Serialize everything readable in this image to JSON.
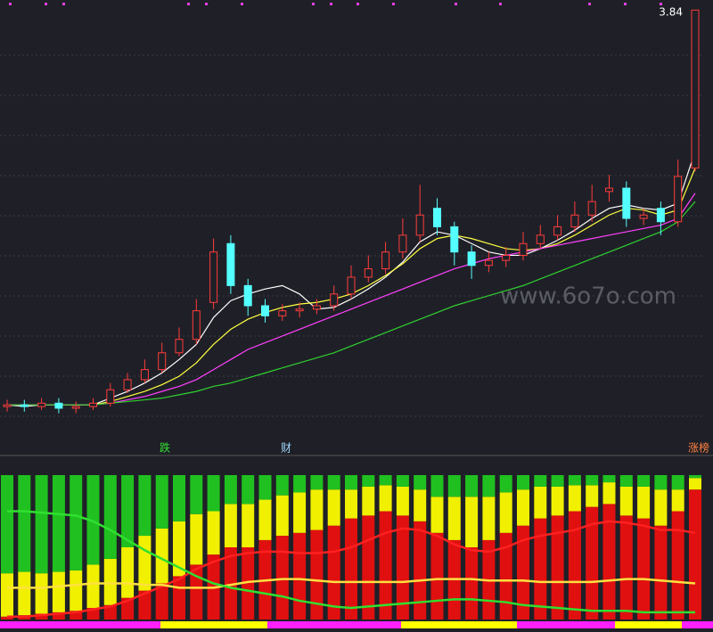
{
  "chart_data": [
    {
      "type": "candlestick",
      "ylim": [
        1.3,
        3.9
      ],
      "high_label": "3.84",
      "up_color": "#ff3b3b",
      "down_color": "#54ffff",
      "open": [
        1.48,
        1.49,
        1.48,
        1.5,
        1.47,
        1.48,
        1.5,
        1.58,
        1.64,
        1.7,
        1.8,
        1.88,
        2.1,
        2.45,
        2.2,
        2.08,
        2.02,
        2.05,
        2.06,
        2.08,
        2.15,
        2.25,
        2.3,
        2.4,
        2.5,
        2.66,
        2.55,
        2.4,
        2.32,
        2.35,
        2.38,
        2.45,
        2.5,
        2.55,
        2.62,
        2.76,
        2.78,
        2.6,
        2.66,
        2.58,
        2.9
      ],
      "high": [
        1.52,
        1.52,
        1.53,
        1.53,
        1.51,
        1.53,
        1.62,
        1.68,
        1.76,
        1.86,
        1.95,
        2.12,
        2.48,
        2.5,
        2.24,
        2.12,
        2.09,
        2.1,
        2.12,
        2.2,
        2.32,
        2.38,
        2.46,
        2.6,
        2.8,
        2.72,
        2.58,
        2.44,
        2.4,
        2.43,
        2.52,
        2.56,
        2.62,
        2.7,
        2.8,
        2.86,
        2.82,
        2.66,
        2.7,
        2.95,
        3.84
      ],
      "low": [
        1.45,
        1.45,
        1.46,
        1.44,
        1.44,
        1.46,
        1.48,
        1.56,
        1.62,
        1.68,
        1.78,
        1.85,
        2.06,
        2.15,
        2.02,
        1.98,
        1.99,
        2.01,
        2.03,
        2.05,
        2.12,
        2.22,
        2.27,
        2.36,
        2.46,
        2.5,
        2.32,
        2.24,
        2.28,
        2.31,
        2.35,
        2.42,
        2.47,
        2.52,
        2.58,
        2.7,
        2.55,
        2.56,
        2.5,
        2.55,
        2.88
      ],
      "close": [
        1.49,
        1.48,
        1.5,
        1.47,
        1.48,
        1.5,
        1.58,
        1.64,
        1.7,
        1.8,
        1.88,
        2.05,
        2.4,
        2.2,
        2.08,
        2.02,
        2.05,
        2.06,
        2.08,
        2.15,
        2.25,
        2.3,
        2.4,
        2.5,
        2.62,
        2.55,
        2.4,
        2.32,
        2.35,
        2.38,
        2.45,
        2.5,
        2.55,
        2.62,
        2.7,
        2.78,
        2.6,
        2.62,
        2.58,
        2.85,
        3.84
      ],
      "series": [
        {
          "color": "#ffffff",
          "values": [
            1.49,
            1.48,
            1.49,
            1.49,
            1.49,
            1.49,
            1.53,
            1.57,
            1.62,
            1.68,
            1.76,
            1.85,
            2.01,
            2.11,
            2.15,
            2.18,
            2.2,
            2.15,
            2.06,
            2.07,
            2.12,
            2.18,
            2.25,
            2.34,
            2.46,
            2.52,
            2.5,
            2.45,
            2.4,
            2.38,
            2.38,
            2.42,
            2.47,
            2.53,
            2.6,
            2.66,
            2.68,
            2.66,
            2.65,
            2.69,
            3.0
          ]
        },
        {
          "color": "#ffff40",
          "values": [
            1.49,
            1.49,
            1.49,
            1.49,
            1.49,
            1.49,
            1.51,
            1.54,
            1.57,
            1.61,
            1.66,
            1.74,
            1.85,
            1.94,
            2.0,
            2.04,
            2.07,
            2.09,
            2.1,
            2.12,
            2.15,
            2.2,
            2.26,
            2.33,
            2.42,
            2.48,
            2.5,
            2.48,
            2.45,
            2.42,
            2.41,
            2.42,
            2.45,
            2.5,
            2.56,
            2.62,
            2.66,
            2.65,
            2.62,
            2.65,
            2.9
          ]
        },
        {
          "color": "#ff40ff",
          "values": [
            1.49,
            1.49,
            1.49,
            1.49,
            1.49,
            1.49,
            1.5,
            1.52,
            1.54,
            1.57,
            1.6,
            1.64,
            1.7,
            1.76,
            1.82,
            1.86,
            1.9,
            1.94,
            1.98,
            2.02,
            2.06,
            2.1,
            2.14,
            2.18,
            2.22,
            2.26,
            2.3,
            2.33,
            2.36,
            2.38,
            2.4,
            2.42,
            2.44,
            2.46,
            2.48,
            2.5,
            2.52,
            2.54,
            2.56,
            2.6,
            2.75
          ]
        },
        {
          "color": "#30d030",
          "values": [
            1.49,
            1.49,
            1.49,
            1.49,
            1.49,
            1.49,
            1.5,
            1.51,
            1.52,
            1.53,
            1.55,
            1.57,
            1.6,
            1.62,
            1.65,
            1.68,
            1.71,
            1.74,
            1.77,
            1.8,
            1.84,
            1.88,
            1.92,
            1.96,
            2.0,
            2.04,
            2.08,
            2.11,
            2.14,
            2.17,
            2.2,
            2.24,
            2.28,
            2.32,
            2.36,
            2.4,
            2.44,
            2.48,
            2.52,
            2.58,
            2.7
          ]
        }
      ],
      "annotations": [
        {
          "text": "跌",
          "color": "#30e030"
        },
        {
          "text": "财",
          "color": "#a0d8ff"
        },
        {
          "text": "涨榜",
          "color": "#ff8040"
        }
      ],
      "watermark": "www.6o7o.com"
    },
    {
      "type": "stacked_bar",
      "ylim": [
        0,
        100
      ],
      "series": [
        {
          "color": "#e01010",
          "values": [
            2,
            3,
            4,
            5,
            6,
            8,
            10,
            15,
            20,
            25,
            30,
            38,
            45,
            50,
            50,
            55,
            58,
            60,
            62,
            65,
            70,
            72,
            75,
            72,
            68,
            60,
            55,
            50,
            55,
            60,
            65,
            70,
            72,
            75,
            78,
            80,
            72,
            70,
            65,
            75,
            90
          ]
        },
        {
          "color": "#f0f000",
          "values": [
            30,
            30,
            28,
            28,
            28,
            30,
            32,
            35,
            38,
            38,
            38,
            35,
            30,
            30,
            30,
            28,
            28,
            28,
            28,
            25,
            20,
            20,
            18,
            20,
            22,
            25,
            30,
            35,
            30,
            28,
            25,
            22,
            20,
            18,
            15,
            15,
            20,
            22,
            25,
            15,
            8
          ]
        },
        {
          "color": "#20c020",
          "values": [
            68,
            67,
            68,
            67,
            66,
            62,
            58,
            50,
            42,
            37,
            32,
            27,
            25,
            20,
            20,
            17,
            14,
            12,
            10,
            10,
            10,
            8,
            7,
            8,
            10,
            15,
            15,
            15,
            15,
            12,
            10,
            8,
            8,
            7,
            7,
            5,
            8,
            8,
            10,
            10,
            2
          ]
        }
      ],
      "lines": [
        {
          "color": "#ff2020",
          "values": [
            2,
            2,
            3,
            4,
            5,
            7,
            9,
            13,
            18,
            23,
            28,
            35,
            40,
            44,
            46,
            47,
            47,
            46,
            46,
            47,
            50,
            55,
            60,
            63,
            62,
            58,
            52,
            48,
            47,
            50,
            55,
            58,
            60,
            62,
            66,
            68,
            67,
            65,
            62,
            62,
            60
          ]
        },
        {
          "color": "#ffe040",
          "values": [
            22,
            22,
            22,
            23,
            24,
            25,
            25,
            25,
            24,
            24,
            22,
            22,
            22,
            24,
            26,
            27,
            28,
            28,
            27,
            26,
            26,
            26,
            26,
            26,
            27,
            28,
            28,
            28,
            27,
            27,
            27,
            26,
            26,
            26,
            26,
            27,
            28,
            28,
            27,
            26,
            25
          ]
        },
        {
          "color": "#30e030",
          "values": [
            75,
            75,
            74,
            73,
            72,
            68,
            62,
            55,
            48,
            42,
            36,
            30,
            25,
            22,
            20,
            18,
            16,
            13,
            11,
            9,
            8,
            9,
            10,
            11,
            12,
            13,
            14,
            14,
            13,
            12,
            10,
            9,
            8,
            7,
            6,
            6,
            6,
            5,
            5,
            5,
            5
          ]
        }
      ]
    }
  ]
}
